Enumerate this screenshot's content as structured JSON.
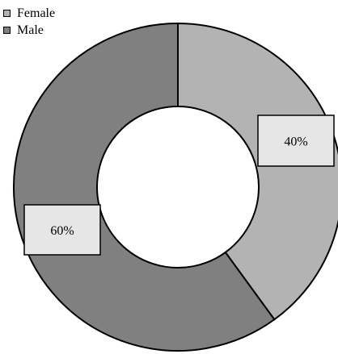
{
  "chart_data": {
    "type": "pie",
    "variant": "donut",
    "categories": [
      "Female",
      "Male"
    ],
    "values": [
      40,
      60
    ],
    "labels": [
      "40%",
      "60%"
    ],
    "colors": [
      "#b3b3b3",
      "#808080"
    ],
    "title": "",
    "legend_position": "top-left"
  },
  "legend": {
    "items": [
      {
        "label": "Female",
        "color": "#b3b3b3"
      },
      {
        "label": "Male",
        "color": "#808080"
      }
    ]
  }
}
